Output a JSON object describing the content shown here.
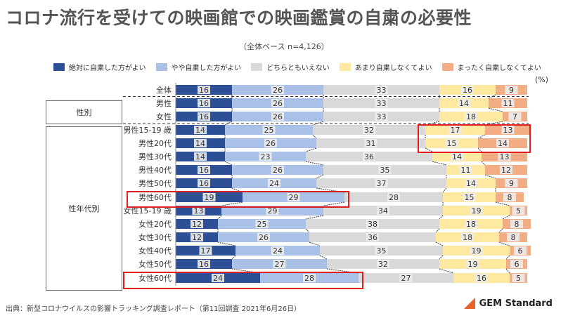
{
  "title": "コロナ流行を受けての映画館での映画鑑賞の自粛の必要性",
  "subtitle": "（全体ベース n=4,126）",
  "unit": "(%)",
  "source": "出典：新型コロナウイルスの影響トラッキング調査レポート（第11回調査 2021年6月26日）",
  "logo": "GEM Standard",
  "groups": {
    "gender": "性別",
    "age_gender": "性年代別"
  },
  "colors": [
    "#2d4f95",
    "#a9c1e6",
    "#d9d9d9",
    "#ffe9a0",
    "#f2ad85"
  ],
  "chart_data": {
    "type": "bar",
    "orientation": "horizontal-stacked-100",
    "legend": [
      "絶対に自粛した方がよい",
      "やや自粛した方がよい",
      "どちらともいえない",
      "あまり自粛しなくてよい",
      "まったく自粛しなくてよい"
    ],
    "categories": [
      "全体",
      "男性",
      "女性",
      "男性15-19 歳",
      "男性20代",
      "男性30代",
      "男性40代",
      "男性50代",
      "男性60代",
      "女性15-19 歳",
      "女性20代",
      "女性30代",
      "女性40代",
      "女性50代",
      "女性60代"
    ],
    "series": [
      {
        "name": "絶対に自粛した方がよい",
        "values": [
          16,
          16,
          16,
          14,
          14,
          14,
          16,
          16,
          19,
          13,
          12,
          12,
          17,
          16,
          24
        ]
      },
      {
        "name": "やや自粛した方がよい",
        "values": [
          26,
          26,
          26,
          25,
          26,
          23,
          26,
          24,
          29,
          29,
          25,
          26,
          24,
          27,
          28
        ]
      },
      {
        "name": "どちらともいえない",
        "values": [
          33,
          33,
          33,
          32,
          31,
          36,
          35,
          37,
          28,
          34,
          38,
          36,
          35,
          32,
          27
        ]
      },
      {
        "name": "あまり自粛しなくてよい",
        "values": [
          16,
          14,
          18,
          17,
          15,
          14,
          11,
          14,
          15,
          19,
          18,
          18,
          19,
          19,
          16
        ]
      },
      {
        "name": "まったく自粛しなくてよい",
        "values": [
          9,
          11,
          7,
          13,
          14,
          13,
          12,
          9,
          8,
          5,
          8,
          8,
          6,
          6,
          5
        ]
      }
    ],
    "xlim": [
      0,
      100
    ],
    "highlighted": [
      "男性15-19 歳:あまり自粛しなくてよい+まったく自粛しなくてよい",
      "男性20代:あまり自粛しなくてよい+まったく自粛しなくてよい",
      "男性60代:絶対に自粛した方がよい+やや自粛した方がよい",
      "女性60代:絶対に自粛した方がよい+やや自粛した方がよい"
    ]
  }
}
